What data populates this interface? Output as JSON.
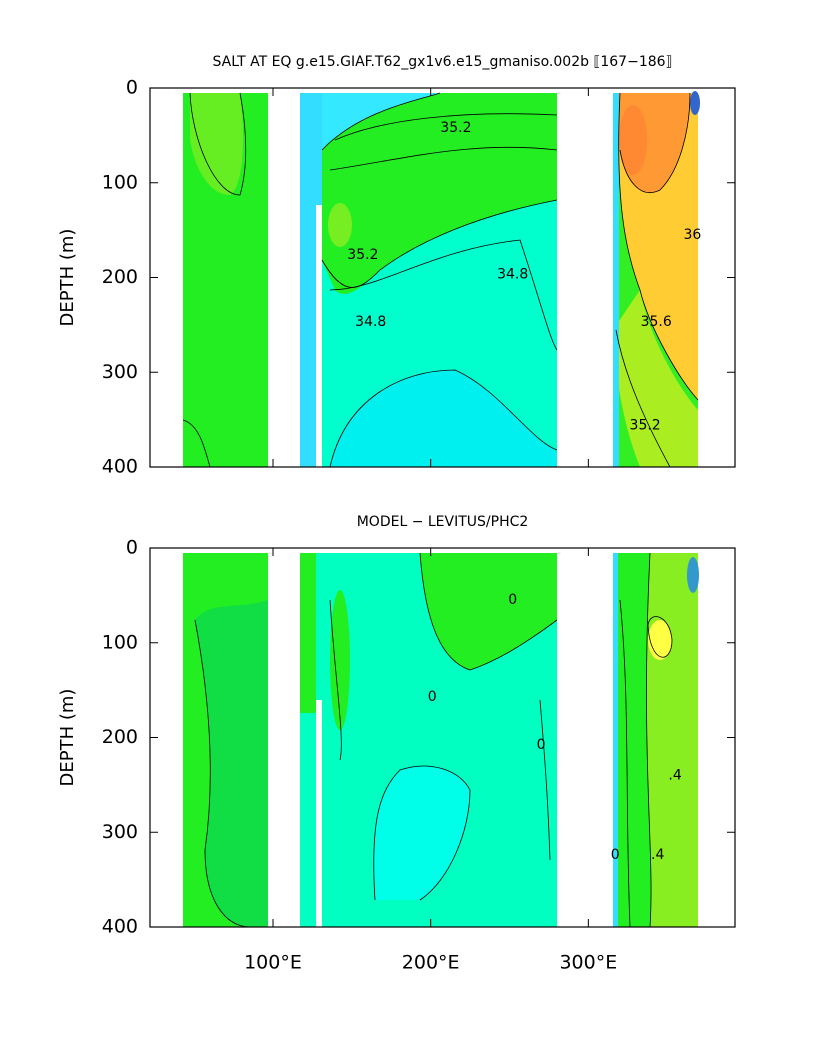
{
  "chart_data": [
    {
      "type": "contour",
      "title": "SALT AT EQ g.e15.GIAF.T62_gx1v6.e15_gmaniso.002b ⟦167−186⟧",
      "y_label": "DEPTH (m)",
      "xlim": [
        22,
        393
      ],
      "ylim": [
        0,
        400
      ],
      "y_inverted": true,
      "xticks": [
        100,
        200,
        300
      ],
      "yticks": [
        0,
        100,
        200,
        300,
        400
      ],
      "annotations": [
        {
          "text": "35.2",
          "x": 216,
          "y": 42
        },
        {
          "text": "35.2",
          "x": 157,
          "y": 176
        },
        {
          "text": "34.8",
          "x": 162,
          "y": 247
        },
        {
          "text": "34.8",
          "x": 252,
          "y": 197
        },
        {
          "text": "36",
          "x": 366,
          "y": 155
        },
        {
          "text": "35.6",
          "x": 343,
          "y": 247
        },
        {
          "text": "35.2",
          "x": 336,
          "y": 356
        }
      ]
    },
    {
      "type": "contour",
      "title": "MODEL − LEVITUS/PHC2",
      "y_label": "DEPTH (m)",
      "xlim": [
        22,
        393
      ],
      "ylim": [
        0,
        400
      ],
      "y_inverted": true,
      "xticks": [
        {
          "value": 100,
          "label": "100°E"
        },
        {
          "value": 200,
          "label": "200°E"
        },
        {
          "value": 300,
          "label": "300°E"
        }
      ],
      "yticks": [
        0,
        100,
        200,
        300,
        400
      ],
      "annotations": [
        {
          "text": "0",
          "x": 252,
          "y": 55
        },
        {
          "text": "0",
          "x": 201,
          "y": 157
        },
        {
          "text": "0",
          "x": 270,
          "y": 208
        },
        {
          "text": "0",
          "x": 317,
          "y": 324
        },
        {
          "text": ".4",
          "x": 355,
          "y": 240
        },
        {
          "text": ".4",
          "x": 344,
          "y": 324
        }
      ]
    }
  ]
}
